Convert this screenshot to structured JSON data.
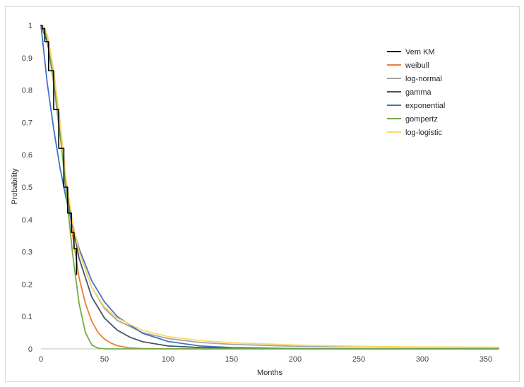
{
  "chart_data": {
    "type": "line",
    "xlabel": "Months",
    "ylabel": "Probability",
    "xlim": [
      0,
      360
    ],
    "ylim": [
      0,
      1
    ],
    "x_ticks": [
      "0",
      "50",
      "100",
      "150",
      "200",
      "250",
      "300",
      "350"
    ],
    "y_ticks": [
      "0",
      "0.1",
      "0.2",
      "0.3",
      "0.4",
      "0.5",
      "0.6",
      "0.7",
      "0.8",
      "0.9",
      "1"
    ],
    "grid": false,
    "legend_position": "top-right",
    "series": [
      {
        "name": "Vem KM",
        "color": "#000000",
        "step": true,
        "x": [
          0,
          1,
          1,
          3,
          3,
          6,
          6,
          10,
          10,
          14,
          14,
          18,
          18,
          21,
          21,
          24,
          24,
          26,
          26,
          28,
          28
        ],
        "y": [
          1,
          1,
          0.99,
          0.99,
          0.95,
          0.95,
          0.86,
          0.86,
          0.74,
          0.74,
          0.62,
          0.62,
          0.5,
          0.5,
          0.42,
          0.42,
          0.36,
          0.36,
          0.31,
          0.31,
          0.23
        ]
      },
      {
        "name": "weibull",
        "color": "#ed7d31",
        "x": [
          0,
          5,
          10,
          15,
          20,
          25,
          30,
          35,
          40,
          45,
          50,
          55,
          60,
          65,
          70,
          80,
          90,
          100,
          360
        ],
        "y": [
          1,
          0.97,
          0.86,
          0.7,
          0.51,
          0.35,
          0.22,
          0.14,
          0.085,
          0.05,
          0.03,
          0.018,
          0.01,
          0.006,
          0.003,
          0.001,
          0.0004,
          0,
          0
        ]
      },
      {
        "name": "log-normal",
        "color": "#a5a5a5",
        "x": [
          0,
          5,
          10,
          15,
          20,
          25,
          30,
          40,
          50,
          60,
          80,
          100,
          125,
          150,
          200,
          250,
          300,
          360
        ],
        "y": [
          1,
          0.95,
          0.82,
          0.66,
          0.51,
          0.39,
          0.3,
          0.19,
          0.125,
          0.088,
          0.05,
          0.032,
          0.02,
          0.014,
          0.008,
          0.006,
          0.005,
          0.004
        ]
      },
      {
        "name": "gamma",
        "color": "#44546a",
        "x": [
          0,
          5,
          10,
          15,
          20,
          25,
          30,
          40,
          50,
          60,
          70,
          80,
          100,
          125,
          150,
          200,
          250,
          360
        ],
        "y": [
          1,
          0.95,
          0.84,
          0.67,
          0.51,
          0.38,
          0.28,
          0.16,
          0.095,
          0.058,
          0.036,
          0.022,
          0.009,
          0.004,
          0.002,
          0.0005,
          0.0001,
          0
        ]
      },
      {
        "name": "exponential",
        "color": "#4472c4",
        "x": [
          0,
          5,
          10,
          15,
          20,
          25,
          30,
          40,
          50,
          60,
          80,
          100,
          125,
          150,
          200,
          250,
          300,
          360
        ],
        "y": [
          1,
          0.82,
          0.68,
          0.56,
          0.46,
          0.38,
          0.31,
          0.21,
          0.145,
          0.1,
          0.048,
          0.023,
          0.009,
          0.004,
          0.0008,
          0.0002,
          0,
          0
        ]
      },
      {
        "name": "gompertz",
        "color": "#70ad47",
        "x": [
          0,
          5,
          10,
          15,
          20,
          25,
          30,
          35,
          40,
          45,
          50,
          55,
          60,
          70,
          80,
          360
        ],
        "y": [
          1,
          0.96,
          0.84,
          0.67,
          0.48,
          0.29,
          0.14,
          0.05,
          0.012,
          0.002,
          0.0003,
          0,
          0,
          0,
          0,
          0
        ]
      },
      {
        "name": "log-logistic",
        "color": "#ffd966",
        "x": [
          0,
          2,
          5,
          10,
          15,
          20,
          25,
          30,
          40,
          50,
          60,
          80,
          100,
          125,
          150,
          200,
          250,
          300,
          360
        ],
        "y": [
          1,
          1,
          0.97,
          0.86,
          0.7,
          0.52,
          0.39,
          0.3,
          0.19,
          0.13,
          0.095,
          0.057,
          0.038,
          0.026,
          0.019,
          0.012,
          0.008,
          0.006,
          0.005
        ]
      }
    ]
  }
}
